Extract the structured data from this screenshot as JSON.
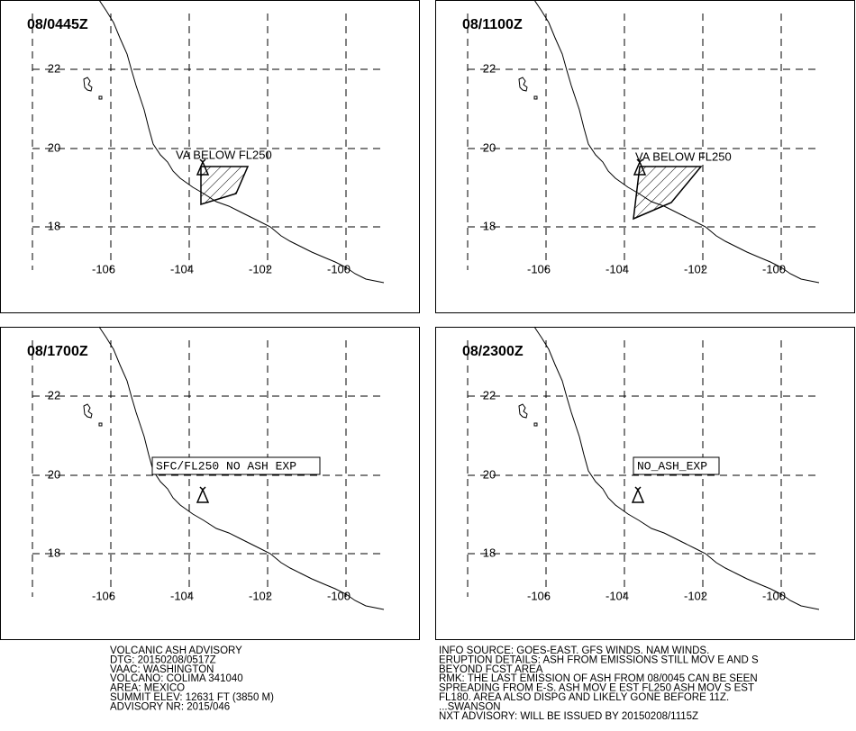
{
  "panels": [
    {
      "time": "08/0445Z",
      "label": "VA BELOW FL250"
    },
    {
      "time": "08/1100Z",
      "label": "VA BELOW FL250"
    },
    {
      "time": "08/1700Z",
      "label": "SFC/FL250 NO ASH EXP"
    },
    {
      "time": "08/2300Z",
      "label": "NO_ASH_EXP"
    }
  ],
  "lat_ticks": [
    "22",
    "20",
    "18"
  ],
  "lon_ticks": [
    "-106",
    "-104",
    "-102",
    "-100"
  ],
  "advisory": {
    "left": [
      "VOLCANIC ASH ADVISORY",
      "DTG: 20150208/0517Z",
      "VAAC: WASHINGTON",
      "VOLCANO: COLIMA 341040",
      "AREA: MEXICO",
      "SUMMIT ELEV: 12631 FT (3850 M)",
      "ADVISORY NR: 2015/046"
    ],
    "right": [
      "INFO SOURCE: GOES-EAST. GFS WINDS. NAM WINDS.",
      "ERUPTION DETAILS: ASH FROM EMISSIONS STILL MOV E AND S",
      "BEYOND FCST AREA",
      "RMK: THE LAST EMISSION OF ASH FROM 08/0045 CAN BE SEEN",
      "SPREADING FROM E-S. ASH MOV E EST FL250 ASH MOV S EST",
      "FL180. AREA ALSO DISPG AND LIKELY GONE BEFORE 11Z.",
      "...SWANSON",
      "NXT ADVISORY: WILL BE ISSUED BY 20150208/1115Z"
    ]
  }
}
